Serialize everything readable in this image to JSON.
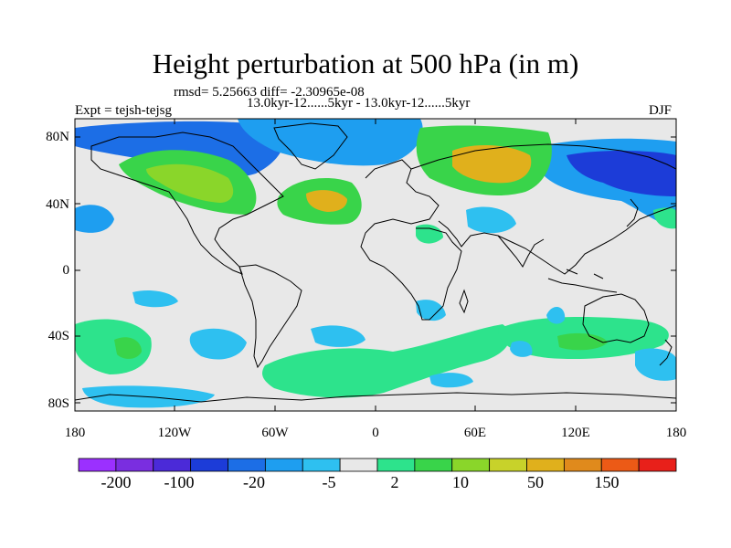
{
  "title": "Height perturbation at 500 hPa (in m)",
  "stats_line": "rmsd= 5.25663 diff= -2.30965e-08",
  "period_line": "13.0kyr-12......5kyr - 13.0kyr-12......5kyr",
  "experiment_label": "Expt = tejsh-tejsg",
  "season_label": "DJF",
  "latitude_labels": [
    "80N",
    "40N",
    "0",
    "40S",
    "80S"
  ],
  "longitude_labels": [
    "180",
    "120W",
    "60W",
    "0",
    "60E",
    "120E",
    "180"
  ],
  "colorbar": {
    "labels": [
      "-200",
      "-100",
      "-20",
      "-5",
      "2",
      "10",
      "50",
      "150"
    ],
    "colors": [
      "#9b30ff",
      "#7a2ee0",
      "#4b2ad8",
      "#1c3cd8",
      "#1c6ee6",
      "#1e9ef0",
      "#2ec0f0",
      "#e8e8e8",
      "#2de38c",
      "#39d44a",
      "#8ad62a",
      "#c8d22a",
      "#e0b01c",
      "#e08a1c",
      "#ec5a16",
      "#e8201a"
    ]
  },
  "map_colors": {
    "background": "#e8e8e8",
    "coast": "#000000"
  }
}
